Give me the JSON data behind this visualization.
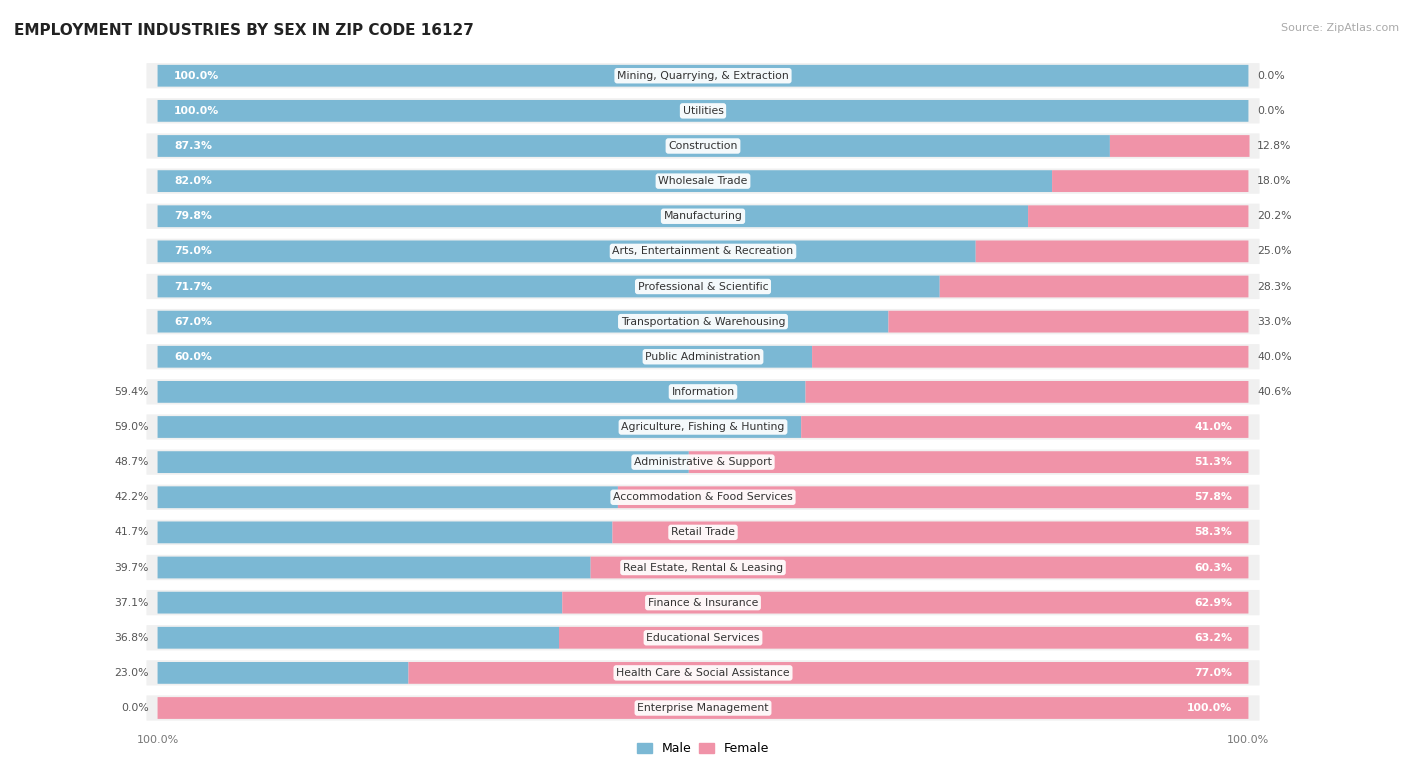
{
  "title": "EMPLOYMENT INDUSTRIES BY SEX IN ZIP CODE 16127",
  "source": "Source: ZipAtlas.com",
  "male_color": "#7bb8d4",
  "female_color": "#f093a8",
  "bar_bg_color": "#e2e2e2",
  "row_bg_color": "#f0f0f0",
  "white": "#ffffff",
  "categories": [
    "Mining, Quarrying, & Extraction",
    "Utilities",
    "Construction",
    "Wholesale Trade",
    "Manufacturing",
    "Arts, Entertainment & Recreation",
    "Professional & Scientific",
    "Transportation & Warehousing",
    "Public Administration",
    "Information",
    "Agriculture, Fishing & Hunting",
    "Administrative & Support",
    "Accommodation & Food Services",
    "Retail Trade",
    "Real Estate, Rental & Leasing",
    "Finance & Insurance",
    "Educational Services",
    "Health Care & Social Assistance",
    "Enterprise Management"
  ],
  "male_pct": [
    100.0,
    100.0,
    87.3,
    82.0,
    79.8,
    75.0,
    71.7,
    67.0,
    60.0,
    59.4,
    59.0,
    48.7,
    42.2,
    41.7,
    39.7,
    37.1,
    36.8,
    23.0,
    0.0
  ],
  "female_pct": [
    0.0,
    0.0,
    12.8,
    18.0,
    20.2,
    25.0,
    28.3,
    33.0,
    40.0,
    40.6,
    41.0,
    51.3,
    57.8,
    58.3,
    60.3,
    62.9,
    63.2,
    77.0,
    100.0
  ]
}
